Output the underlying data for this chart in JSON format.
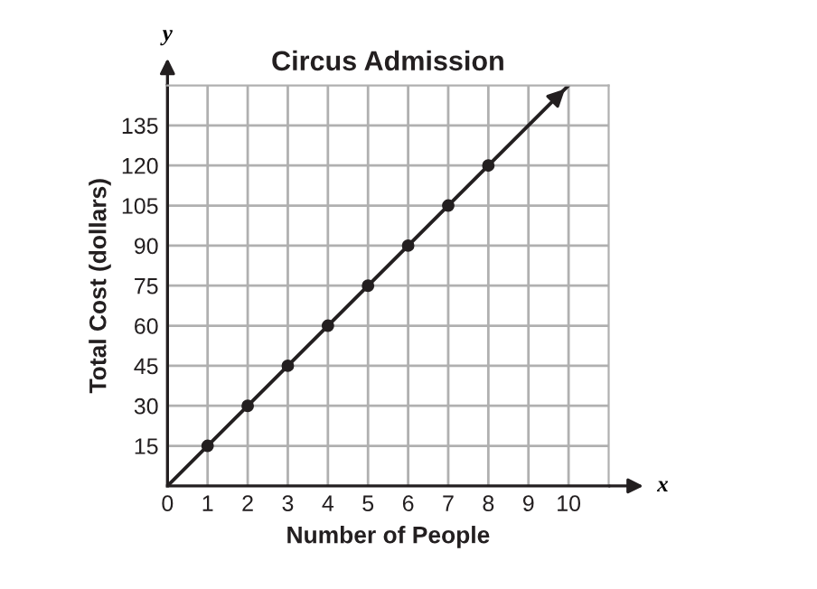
{
  "chart_data": {
    "type": "line",
    "title": "Circus Admission",
    "xlabel": "Number of People",
    "ylabel": "Total Cost (dollars)",
    "annotations": [
      "x",
      "y"
    ],
    "series": [
      {
        "color": "#231f20",
        "x": [
          0,
          10
        ],
        "values": [
          0,
          150
        ],
        "marker": "none"
      },
      {
        "type": "scatter",
        "color": "#231f20",
        "x": [
          1,
          2,
          3,
          4,
          5,
          6,
          7,
          8
        ],
        "values": [
          15,
          30,
          45,
          60,
          75,
          90,
          105,
          120
        ],
        "marker": "circle"
      }
    ],
    "xlim": [
      0,
      11
    ],
    "ylim": [
      0,
      150
    ],
    "xticks": [
      0,
      1,
      2,
      3,
      4,
      5,
      6,
      7,
      8,
      9,
      10
    ],
    "yticks": [
      15,
      30,
      45,
      60,
      75,
      90,
      105,
      120,
      135
    ],
    "grid": true
  }
}
